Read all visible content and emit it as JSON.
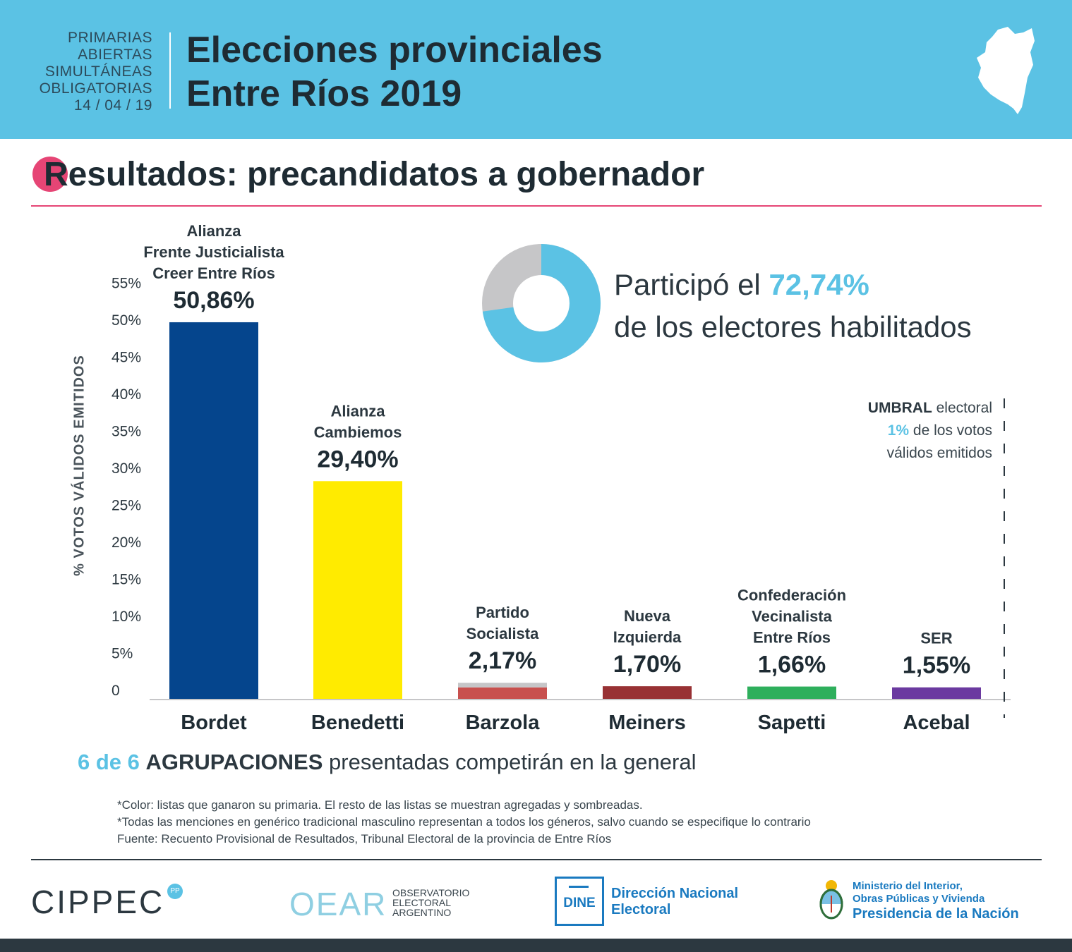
{
  "header": {
    "paso_lines": [
      "PRIMARIAS",
      "ABIERTAS",
      "SIMULTÁNEAS",
      "OBLIGATORIAS",
      "14 / 04 / 19"
    ],
    "title_line1": "Elecciones provinciales",
    "title_line2": "Entre Ríos 2019"
  },
  "section": {
    "title": "Resultados: precandidatos a gobernador"
  },
  "participation": {
    "value": 72.74,
    "line1_prefix": "Participó el ",
    "percent_label": "72,74%",
    "line2": "de los electores habilitados"
  },
  "threshold": {
    "label_bold": "UMBRAL",
    "label_rest": " electoral",
    "pct": "1%",
    "line2_rest": " de los votos",
    "line3": "válidos emitidos"
  },
  "chart_data": {
    "type": "bar",
    "ylabel": "% VOTOS VÁLIDOS EMITIDOS",
    "ylim": [
      0,
      55
    ],
    "yticks": [
      0,
      5,
      10,
      15,
      20,
      25,
      30,
      35,
      40,
      45,
      50,
      55
    ],
    "ytick_labels": [
      "0",
      "5%",
      "10%",
      "15%",
      "20%",
      "25%",
      "30%",
      "35%",
      "40%",
      "45%",
      "50%",
      "55%"
    ],
    "categories": [
      "Bordet",
      "Benedetti",
      "Barzola",
      "Meiners",
      "Sapetti",
      "Acebal"
    ],
    "parties": [
      [
        "Alianza",
        "Frente Justicialista",
        "Creer Entre Ríos"
      ],
      [
        "Alianza",
        "Cambiemos"
      ],
      [
        "Partido",
        "Socialista"
      ],
      [
        "Nueva",
        "Izquierda"
      ],
      [
        "Confederación",
        "Vecinalista",
        "Entre Ríos"
      ],
      [
        "SER"
      ]
    ],
    "value_labels": [
      "50,86%",
      "29,40%",
      "2,17%",
      "1,70%",
      "1,66%",
      "1,55%"
    ],
    "series": [
      {
        "name": "Lista ganadora",
        "values": [
          50.86,
          29.4,
          1.55,
          1.7,
          1.66,
          1.55
        ]
      },
      {
        "name": "Resto de las listas",
        "values": [
          0,
          0,
          0.62,
          0,
          0,
          0
        ]
      }
    ],
    "colors": [
      "#05458d",
      "#ffeb00",
      "#c8504e",
      "#983134",
      "#2eaf5c",
      "#6b3aa0"
    ],
    "other_lists_color": "#c6c6c8"
  },
  "summary": {
    "count": "6 de 6",
    "bold": "AGRUPACIONES",
    "rest": " presentadas competirán en la general"
  },
  "notes": [
    "*Color: listas que ganaron su primaria. El resto de las listas se muestran agregadas y sombreadas.",
    "*Todas las menciones en genérico tradicional masculino representan a todos los géneros, salvo cuando se especifique lo contrario",
    "Fuente: Recuento Provisional de Resultados, Tribunal Electoral de la provincia de Entre Ríos"
  ],
  "logos": {
    "cippec": "CIPPEC",
    "cippec_badge": "PP",
    "oear_mark": "OEAR",
    "oear_lines": [
      "OBSERVATORIO",
      "ELECTORAL",
      "ARGENTINO"
    ],
    "dine_box": "DINE",
    "dine_lines": [
      "Dirección Nacional",
      "Electoral"
    ],
    "ministerio_lines": [
      "Ministerio del Interior,",
      "Obras Públicas y Vivienda"
    ],
    "presidencia": "Presidencia de la Nación"
  },
  "colors": {
    "header_bg": "#5bc2e4",
    "accent_pink": "#e64575",
    "accent_blue": "#5bc2e4",
    "dark": "#1e2b33"
  }
}
